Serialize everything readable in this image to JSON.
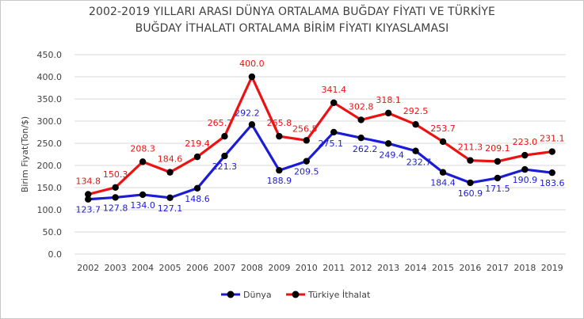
{
  "chart_data": {
    "type": "line",
    "title_line1": "2002-2019 YILLARI ARASI DÜNYA ORTALAMA BUĞDAY FİYATI VE TÜRKİYE",
    "title_line2": "BUĞDAY İTHALATI ORTALAMA BİRİM FİYATI KIYASLAMASI",
    "ylabel": "Birim Fiyat(Ton/$)",
    "xlabel": "",
    "ylim": [
      0,
      450
    ],
    "ytick_step": 50,
    "yticks": [
      "0.0",
      "50.0",
      "100.0",
      "150.0",
      "200.0",
      "250.0",
      "300.0",
      "350.0",
      "400.0",
      "450.0"
    ],
    "grid": "horizontal",
    "legend_position": "bottom",
    "categories": [
      "2002",
      "2003",
      "2004",
      "2005",
      "2006",
      "2007",
      "2008",
      "2009",
      "2010",
      "2011",
      "2012",
      "2013",
      "2014",
      "2015",
      "2016",
      "2017",
      "2018",
      "2019"
    ],
    "series": [
      {
        "name": "Dünya",
        "color": "#1c1cd6",
        "marker_color": "#000000",
        "values": [
          123.7,
          127.8,
          134.0,
          127.1,
          148.6,
          221.3,
          292.2,
          188.9,
          209.5,
          275.1,
          262.2,
          249.4,
          232.7,
          184.4,
          160.9,
          171.5,
          190.9,
          183.6
        ],
        "labels": [
          "123.7",
          "127.8",
          "134.0",
          "127.1",
          "148.6",
          "221.3",
          "292.2",
          "188.9",
          "209.5",
          "275.1",
          "262.2",
          "249.4",
          "232.7",
          "184.4",
          "160.9",
          "171.5",
          "190.9",
          "183.6"
        ]
      },
      {
        "name": "Türkiye İthalat",
        "color": "#ee1111",
        "marker_color": "#000000",
        "values": [
          134.8,
          150.3,
          208.3,
          184.6,
          219.4,
          265.7,
          400.0,
          265.8,
          256.5,
          341.4,
          302.8,
          318.1,
          292.5,
          253.7,
          211.3,
          209.1,
          223.0,
          231.1
        ],
        "labels": [
          "134.8",
          "150.3",
          "208.3",
          "184.6",
          "219.4",
          "265.7",
          "400.0",
          "265.8",
          "256.5",
          "341.4",
          "302.8",
          "318.1",
          "292.5",
          "253.7",
          "211.3",
          "209.1",
          "223.0",
          "231.1"
        ]
      }
    ]
  }
}
